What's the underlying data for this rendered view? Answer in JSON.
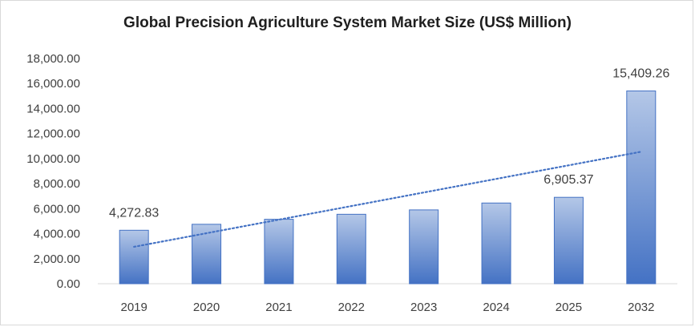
{
  "chart_data": {
    "type": "bar",
    "title": "Global Precision Agriculture System Market Size (US$ Million)",
    "categories": [
      "2019",
      "2020",
      "2021",
      "2022",
      "2023",
      "2024",
      "2025",
      "2032"
    ],
    "values": [
      4272.83,
      4750,
      5150,
      5550,
      5900,
      6450,
      6905.37,
      15409.26
    ],
    "data_labels": [
      {
        "category": "2019",
        "text": "4,272.83"
      },
      {
        "category": "2025",
        "text": "6,905.37"
      },
      {
        "category": "2032",
        "text": "15,409.26"
      }
    ],
    "y_tick_labels": [
      "0.00",
      "2,000.00",
      "4,000.00",
      "6,000.00",
      "8,000.00",
      "10,000.00",
      "12,000.00",
      "14,000.00",
      "16,000.00",
      "18,000.00"
    ],
    "ylim": [
      0,
      18000
    ],
    "ystep": 2000,
    "xlabel": "",
    "ylabel": "",
    "grid": false,
    "legend": "none",
    "trendline": {
      "type": "linear",
      "style": "dotted",
      "color": "#4472c4",
      "start_value": 2950,
      "end_value": 10550
    },
    "colors": {
      "bar_top": "#b4c7e7",
      "bar_bottom": "#4472c4",
      "bar_border": "#4472c4",
      "axis": "#d9d9d9"
    }
  }
}
